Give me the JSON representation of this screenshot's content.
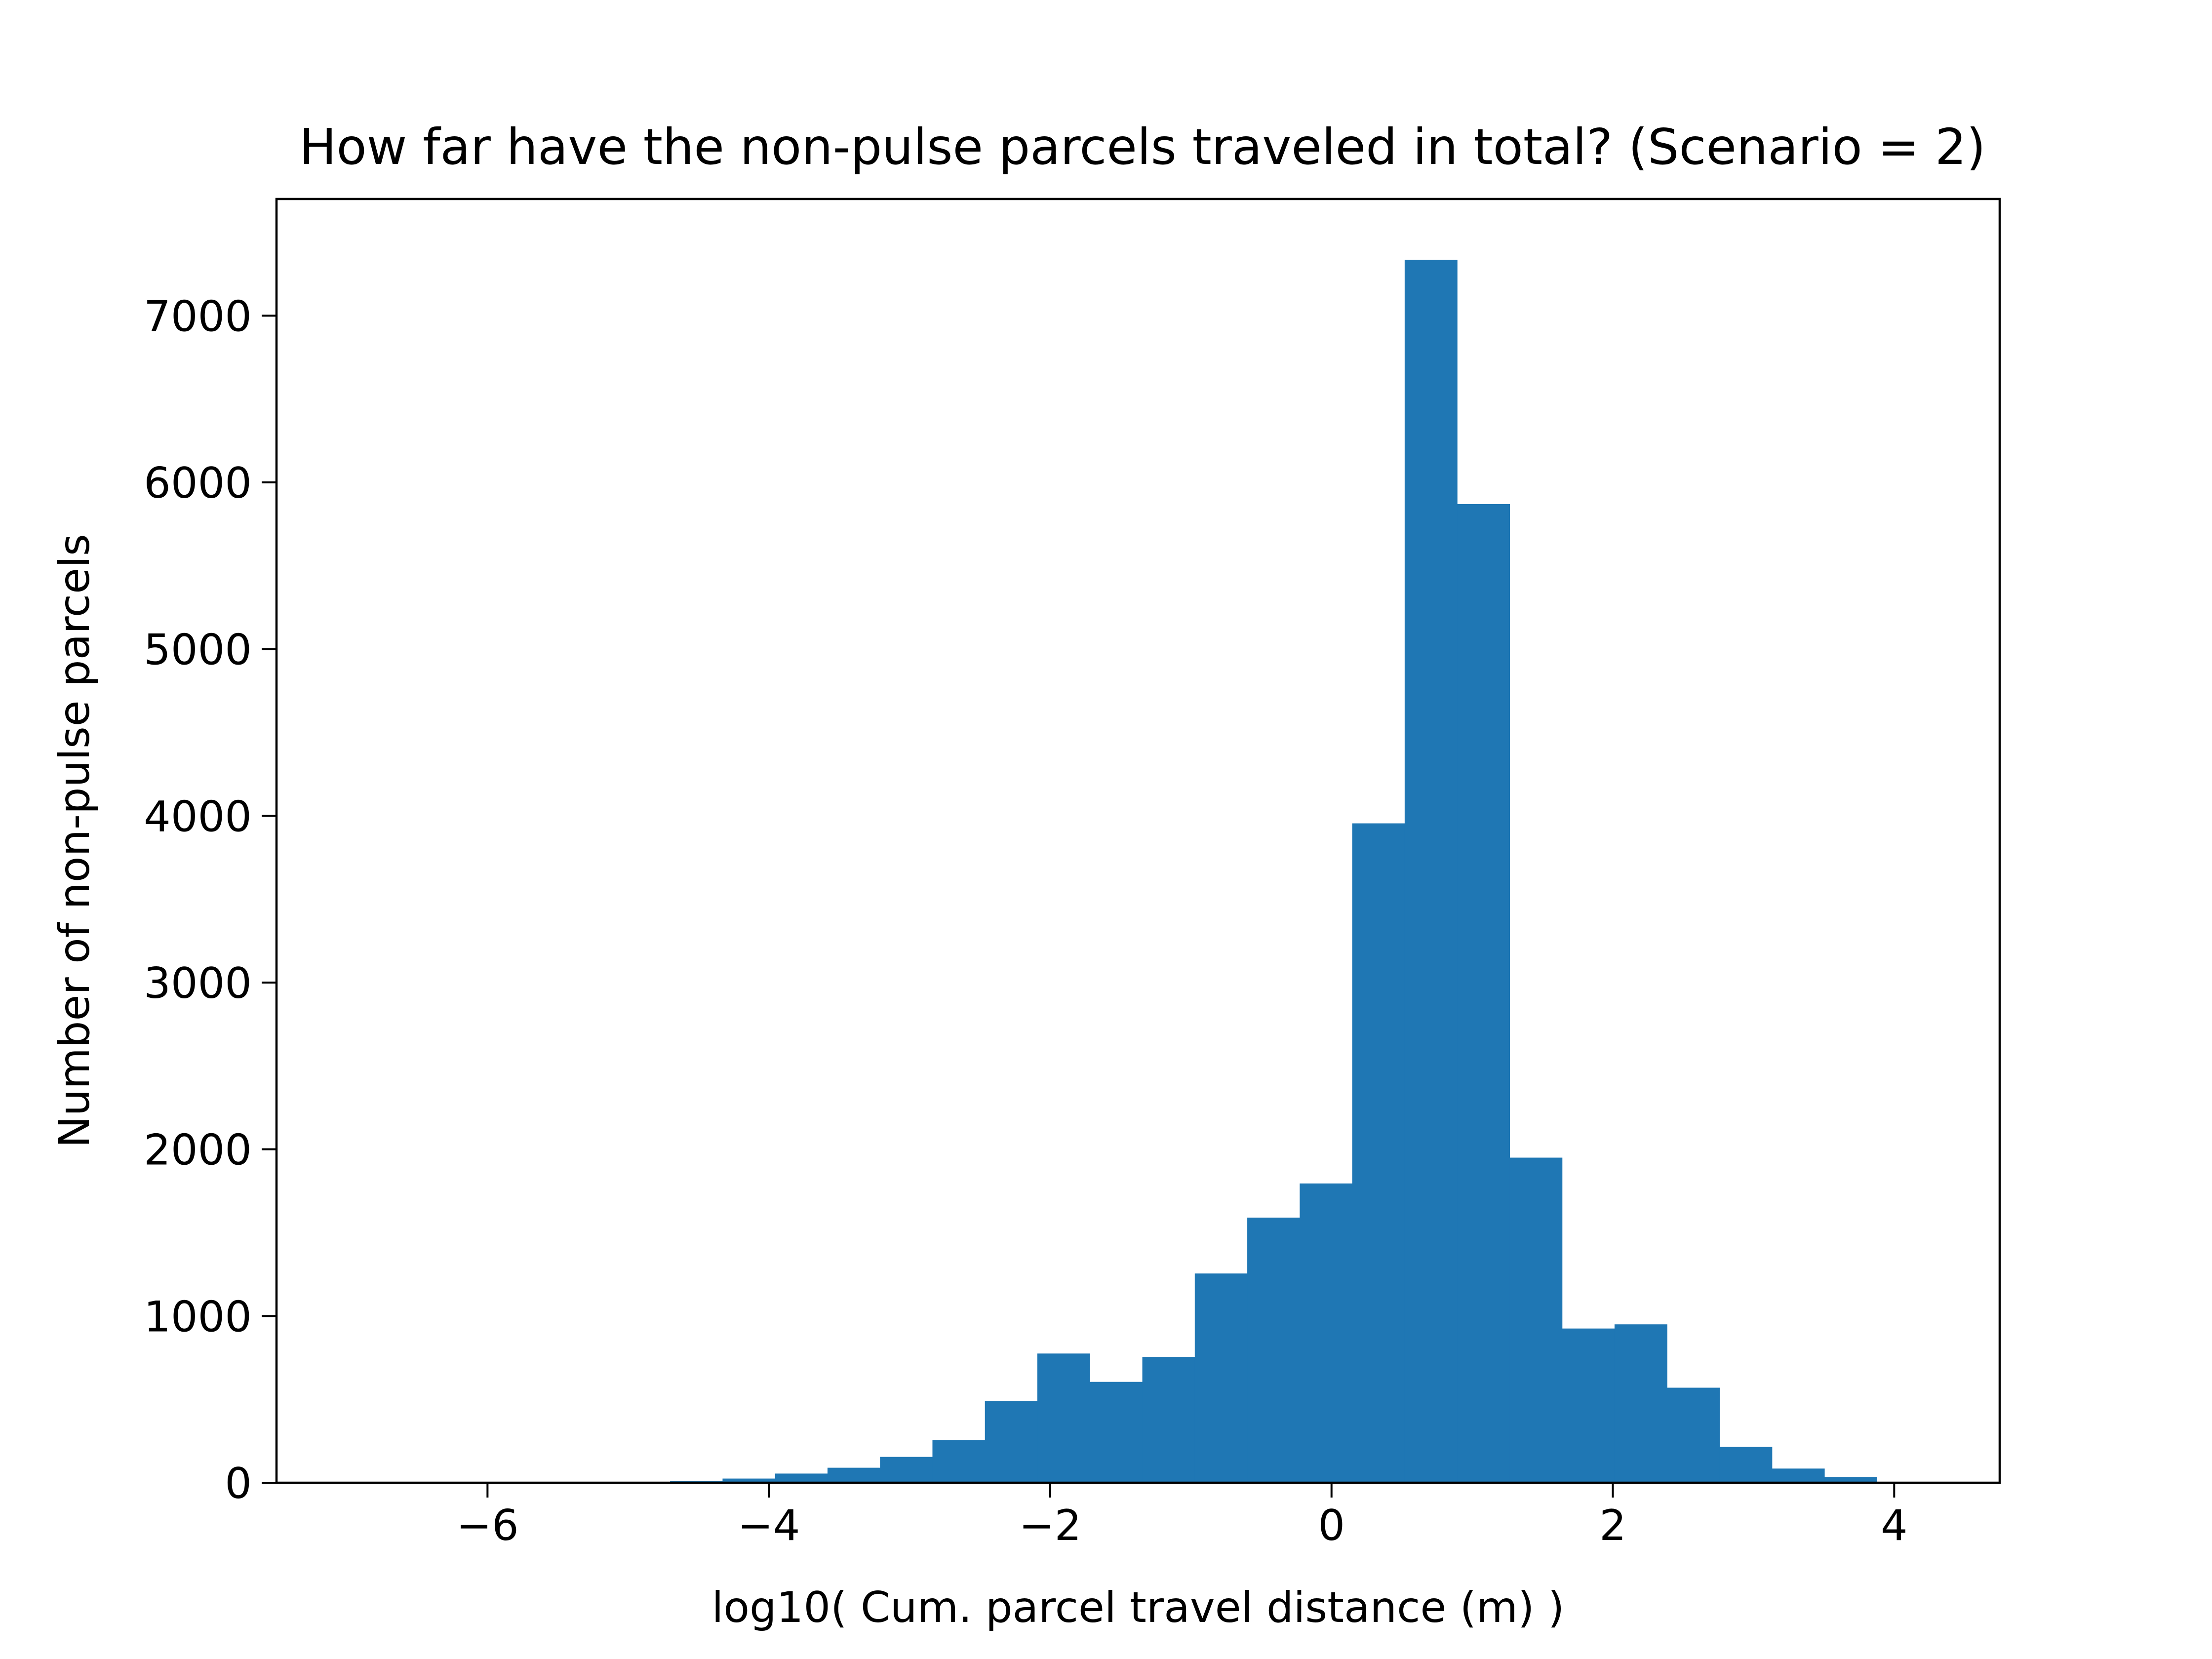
{
  "chart_data": {
    "type": "bar",
    "title": "How far have the non-pulse parcels traveled in total? (Scenario = 2)",
    "xlabel": "log10( Cum. parcel travel distance (m) )",
    "ylabel": "Number of non-pulse parcels",
    "xlim": [
      -7.5,
      4.75
    ],
    "ylim": [
      0,
      7700
    ],
    "xticks": [
      -6,
      -4,
      -2,
      0,
      2,
      4
    ],
    "xtick_labels": [
      "−6",
      "−4",
      "−2",
      "0",
      "2",
      "4"
    ],
    "yticks": [
      0,
      1000,
      2000,
      3000,
      4000,
      5000,
      6000,
      7000
    ],
    "ytick_labels": [
      "0",
      "1000",
      "2000",
      "3000",
      "4000",
      "5000",
      "6000",
      "7000"
    ],
    "bar_color": "#1f77b4",
    "grid": false,
    "bin_width": 0.373,
    "bin_starts": [
      -6.94,
      -6.567,
      -6.194,
      -5.821,
      -5.448,
      -5.075,
      -4.702,
      -4.329,
      -3.956,
      -3.583,
      -3.21,
      -2.837,
      -2.464,
      -2.091,
      -1.718,
      -1.345,
      -0.972,
      -0.599,
      -0.226,
      0.147,
      0.52,
      0.893,
      1.266,
      1.639,
      2.012,
      2.385,
      2.758,
      3.131,
      3.504,
      3.877
    ],
    "values": [
      2,
      0,
      0,
      0,
      0,
      3,
      10,
      25,
      55,
      90,
      155,
      255,
      490,
      775,
      605,
      755,
      1255,
      1590,
      1795,
      3955,
      7335,
      5870,
      1950,
      925,
      950,
      570,
      215,
      85,
      35,
      5
    ]
  }
}
